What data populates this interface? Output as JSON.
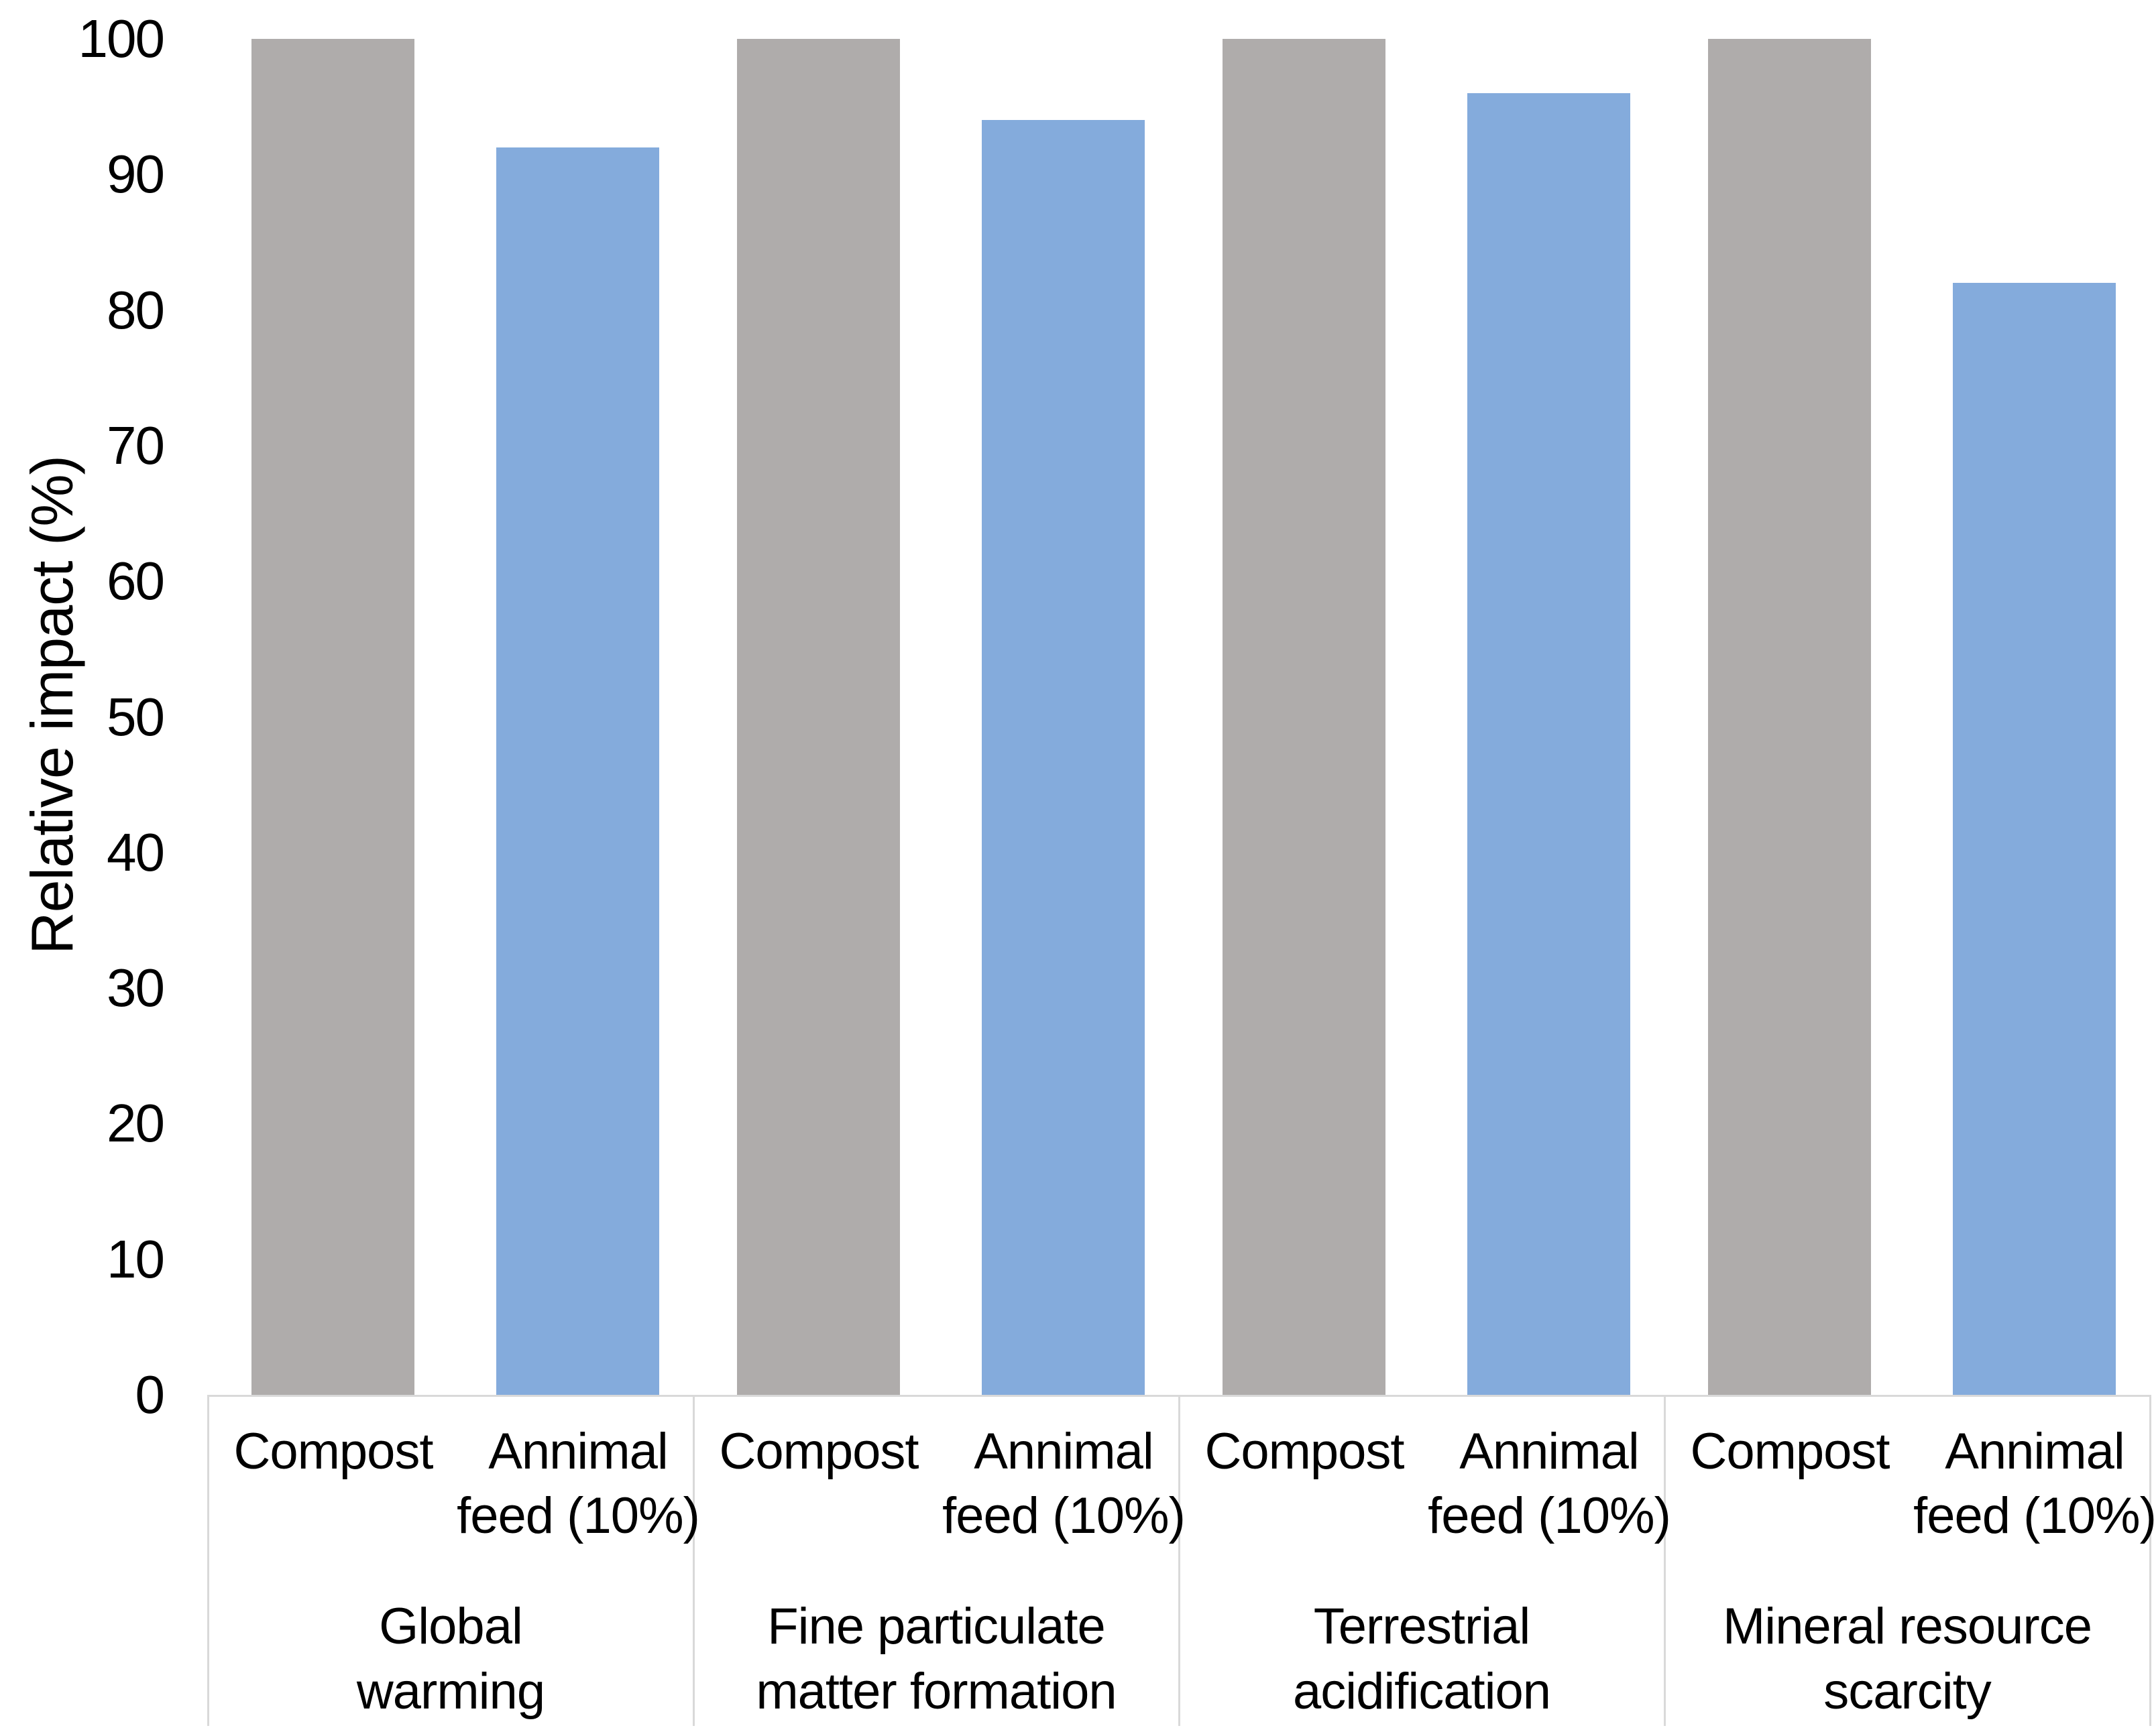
{
  "chart_data": {
    "type": "bar",
    "title": "",
    "ylabel": "Relative impact (%)",
    "xlabel": "",
    "ylim": [
      0,
      100
    ],
    "yticks": [
      0,
      10,
      20,
      30,
      40,
      50,
      60,
      70,
      80,
      90,
      100
    ],
    "grid": false,
    "legend_position": "none",
    "categories": [
      "Global warming",
      "Fine particulate matter formation",
      "Terrestrial acidification",
      "Mineral resource scarcity"
    ],
    "series": [
      {
        "name": "Compost",
        "color": "#AFACAB",
        "values": [
          100,
          100,
          100,
          100
        ]
      },
      {
        "name": "Annimal feed (10%)",
        "color": "#84ABDC",
        "values": [
          92,
          94,
          96,
          82
        ]
      }
    ],
    "bar_tick_labels": [
      "Compost",
      "Annimal\nfeed (10%)"
    ],
    "group_labels_wrapped": [
      "Global\nwarming",
      "Fine particulate\nmatter formation",
      "Terrestrial\nacidification",
      "Mineral resource\nscarcity"
    ],
    "axis_line_color": "#D9D9D9",
    "text_color": "#000000",
    "background_color": "#FFFFFF"
  }
}
